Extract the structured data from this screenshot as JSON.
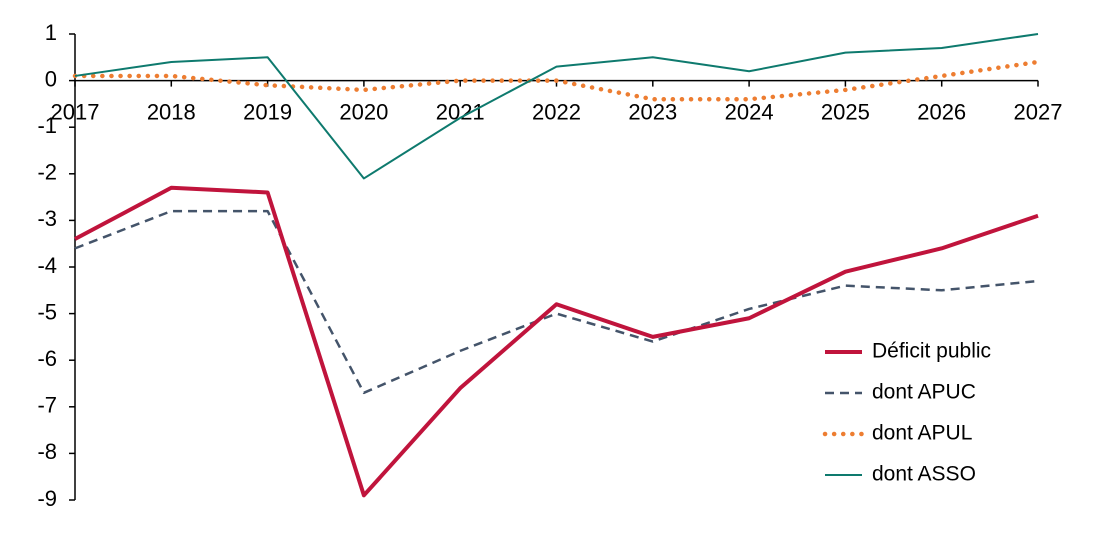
{
  "chart_data": {
    "type": "line",
    "categories": [
      "2017",
      "2018",
      "2019",
      "2020",
      "2021",
      "2022",
      "2023",
      "2024",
      "2025",
      "2026",
      "2027"
    ],
    "series": [
      {
        "name": "Déficit public",
        "color": "#c0143c",
        "style": "solid",
        "width": 4,
        "values": [
          -3.4,
          -2.3,
          -2.4,
          -8.9,
          -6.6,
          -4.8,
          -5.5,
          -5.1,
          -4.1,
          -3.6,
          -2.9
        ]
      },
      {
        "name": "dont APUC",
        "color": "#44546a",
        "style": "dashed",
        "width": 2.5,
        "values": [
          -3.6,
          -2.8,
          -2.8,
          -6.7,
          -5.8,
          -5.0,
          -5.6,
          -4.9,
          -4.4,
          -4.5,
          -4.3
        ]
      },
      {
        "name": "dont APUL",
        "color": "#ed7d31",
        "style": "dotted",
        "width": 4.5,
        "values": [
          0.1,
          0.1,
          -0.1,
          -0.2,
          0.0,
          0.0,
          -0.4,
          -0.4,
          -0.2,
          0.1,
          0.4
        ]
      },
      {
        "name": "dont ASSO",
        "color": "#0e7a6e",
        "style": "solid",
        "width": 2,
        "values": [
          0.1,
          0.4,
          0.5,
          -2.1,
          -0.8,
          0.3,
          0.5,
          0.2,
          0.6,
          0.7,
          1.0
        ]
      }
    ],
    "ylim": [
      -9,
      1
    ],
    "yticks": [
      -9,
      -8,
      -7,
      -6,
      -5,
      -4,
      -3,
      -2,
      -1,
      0,
      1
    ],
    "grid": false,
    "legend": "right"
  }
}
